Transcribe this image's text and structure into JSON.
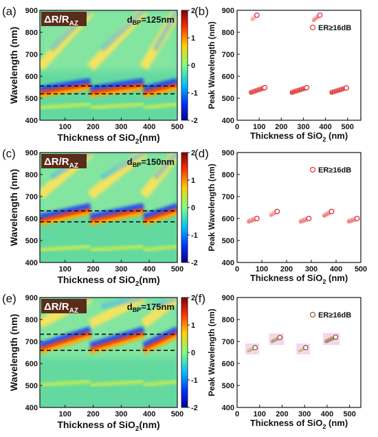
{
  "chart_data": [
    {
      "panel": "(a)",
      "type": "heatmap",
      "badge_main": "ΔR/R",
      "badge_sub": "AZ",
      "param_main": "d",
      "param_sub": "BP",
      "param_value": "=125nm",
      "xlabel_main": "Thickness of SiO",
      "xlabel_sub": "2",
      "xlabel_tail": "(nm)",
      "ylabel": "Wavelength (nm)",
      "xticks": [
        "100",
        "200",
        "300",
        "400",
        "500"
      ],
      "yticks": [
        "400",
        "500",
        "600",
        "700",
        "800",
        "900"
      ],
      "xlim": [
        10,
        500
      ],
      "ylim": [
        400,
        900
      ],
      "colorbar_ticks": [
        "2",
        "1",
        "0",
        "-1",
        "-2"
      ],
      "colorbar_range": [
        -2,
        2
      ],
      "dashed_lines": [
        520,
        556
      ],
      "green_band": 465
    },
    {
      "panel": "(b)",
      "type": "scatter",
      "legend": "ER≥16dB",
      "xlabel_main": "Thickness of SiO",
      "xlabel_sub": "2",
      "xlabel_tail": " (nm)",
      "ylabel": "Peak Wavelength (nm)",
      "xticks": [
        "0",
        "100",
        "200",
        "300",
        "400",
        "500"
      ],
      "yticks": [
        "400",
        "500",
        "600",
        "700",
        "800",
        "900"
      ],
      "xlim": [
        0,
        560
      ],
      "ylim": [
        400,
        900
      ],
      "marker_color": "#dd1111",
      "clusters": [
        {
          "x0": 65,
          "y0": 527,
          "x1": 125,
          "y1": 548
        },
        {
          "x0": 250,
          "y0": 527,
          "x1": 315,
          "y1": 548
        },
        {
          "x0": 430,
          "y0": 527,
          "x1": 495,
          "y1": 547
        },
        {
          "x0": 72,
          "y0": 862,
          "x1": 90,
          "y1": 878
        },
        {
          "x0": 350,
          "y0": 858,
          "x1": 375,
          "y1": 878
        }
      ]
    },
    {
      "panel": "(c)",
      "type": "heatmap",
      "badge_main": "ΔR/R",
      "badge_sub": "AZ",
      "param_main": "d",
      "param_sub": "BP",
      "param_value": "=150nm",
      "xlabel_main": "Thickness of SiO",
      "xlabel_sub": "2",
      "xlabel_tail": "(nm)",
      "ylabel": "Wavelength (nm)",
      "xticks": [
        "100",
        "200",
        "300",
        "400",
        "500"
      ],
      "yticks": [
        "400",
        "500",
        "600",
        "700",
        "800",
        "900"
      ],
      "xlim": [
        10,
        500
      ],
      "ylim": [
        400,
        900
      ],
      "colorbar_ticks": [
        "2",
        "1",
        "0",
        "-1",
        "-2"
      ],
      "colorbar_range": [
        -2,
        2
      ],
      "dashed_lines": [
        585,
        635
      ],
      "green_band": 465
    },
    {
      "panel": "(d)",
      "type": "scatter",
      "legend": "ER≥16dB",
      "xlabel_main": "Thickness of SiO",
      "xlabel_sub": "2",
      "xlabel_tail": " (nm)",
      "ylabel": "Peak Wavelength (nm)",
      "xticks": [
        "0",
        "100",
        "200",
        "300",
        "400",
        "500"
      ],
      "yticks": [
        "400",
        "500",
        "600",
        "700",
        "800",
        "900"
      ],
      "xlim": [
        0,
        500
      ],
      "ylim": [
        400,
        900
      ],
      "marker_color": "#dd1111",
      "clusters": [
        {
          "x0": 50,
          "y0": 588,
          "x1": 80,
          "y1": 600
        },
        {
          "x0": 140,
          "y0": 618,
          "x1": 162,
          "y1": 632
        },
        {
          "x0": 260,
          "y0": 588,
          "x1": 290,
          "y1": 600
        },
        {
          "x0": 355,
          "y0": 615,
          "x1": 382,
          "y1": 632
        },
        {
          "x0": 455,
          "y0": 588,
          "x1": 485,
          "y1": 600
        }
      ]
    },
    {
      "panel": "(e)",
      "type": "heatmap",
      "badge_main": "ΔR/R",
      "badge_sub": "AZ",
      "param_main": "d",
      "param_sub": "BP",
      "param_value": "=175nm",
      "xlabel_main": "Thickness of SiO",
      "xlabel_sub": "2",
      "xlabel_tail": "(nm)",
      "ylabel": "Wavelength (nm)",
      "xticks": [
        "100",
        "200",
        "300",
        "400",
        "500"
      ],
      "yticks": [
        "400",
        "500",
        "600",
        "700",
        "800",
        "900"
      ],
      "xlim": [
        10,
        500
      ],
      "ylim": [
        400,
        900
      ],
      "colorbar_ticks": [
        "2",
        "1",
        "0",
        "-1",
        "-2"
      ],
      "colorbar_range": [
        -2,
        2
      ],
      "dashed_lines": [
        660,
        733
      ],
      "green_band": 510
    },
    {
      "panel": "(f)",
      "type": "scatter",
      "legend": "ER≥16dB",
      "xlabel_main": "Thickness of SiO",
      "xlabel_sub": "2",
      "xlabel_tail": " (nm)",
      "ylabel": "Peak Wavelength (nm)",
      "xticks": [
        "0",
        "100",
        "200",
        "300",
        "400",
        "500"
      ],
      "yticks": [
        "400",
        "500",
        "600",
        "700",
        "800",
        "900"
      ],
      "xlim": [
        0,
        550
      ],
      "ylim": [
        400,
        900
      ],
      "marker_color": "#7a3b0c",
      "clusters": [
        {
          "x0": 55,
          "y0": 660,
          "x1": 80,
          "y1": 672
        },
        {
          "x0": 160,
          "y0": 703,
          "x1": 190,
          "y1": 718
        },
        {
          "x0": 282,
          "y0": 660,
          "x1": 305,
          "y1": 672
        },
        {
          "x0": 400,
          "y0": 703,
          "x1": 438,
          "y1": 720
        }
      ]
    }
  ]
}
